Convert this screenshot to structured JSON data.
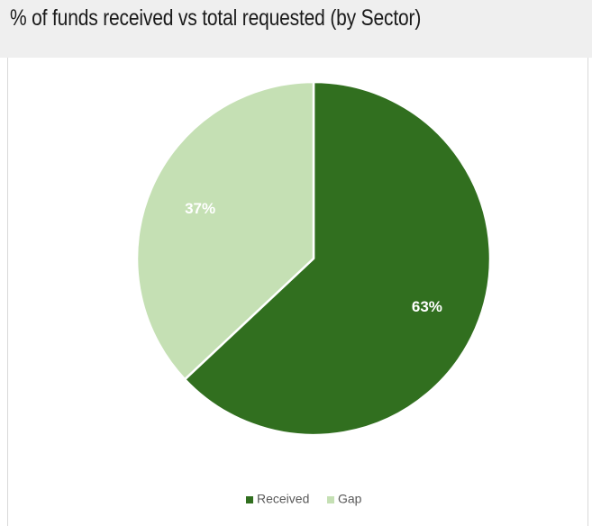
{
  "title": "% of funds received vs total requested (by Sector)",
  "colors": {
    "received": "#316f1f",
    "gap": "#c5e0b4",
    "header_bg": "#efefef"
  },
  "chart_data": {
    "type": "pie",
    "title": "% of funds received vs total requested (by Sector)",
    "slices": [
      {
        "name": "Received",
        "value": 63,
        "label": "63%",
        "color": "#316f1f"
      },
      {
        "name": "Gap",
        "value": 37,
        "label": "37%",
        "color": "#c5e0b4"
      }
    ],
    "legend": {
      "position": "bottom",
      "entries": [
        "Received",
        "Gap"
      ]
    }
  }
}
